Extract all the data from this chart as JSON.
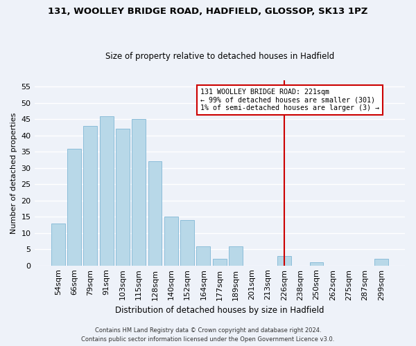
{
  "title": "131, WOOLLEY BRIDGE ROAD, HADFIELD, GLOSSOP, SK13 1PZ",
  "subtitle": "Size of property relative to detached houses in Hadfield",
  "xlabel": "Distribution of detached houses by size in Hadfield",
  "ylabel": "Number of detached properties",
  "bar_labels": [
    "54sqm",
    "66sqm",
    "79sqm",
    "91sqm",
    "103sqm",
    "115sqm",
    "128sqm",
    "140sqm",
    "152sqm",
    "164sqm",
    "177sqm",
    "189sqm",
    "201sqm",
    "213sqm",
    "226sqm",
    "238sqm",
    "250sqm",
    "262sqm",
    "275sqm",
    "287sqm",
    "299sqm"
  ],
  "bar_values": [
    13,
    36,
    43,
    46,
    42,
    45,
    32,
    15,
    14,
    6,
    2,
    6,
    0,
    0,
    3,
    0,
    1,
    0,
    0,
    0,
    2
  ],
  "bar_color": "#b8d8e8",
  "bar_edge_color": "#8bbdd9",
  "background_color": "#eef2f9",
  "grid_color": "#ffffff",
  "vline_x_index": 14,
  "vline_color": "#cc0000",
  "annotation_text": "131 WOOLLEY BRIDGE ROAD: 221sqm\n← 99% of detached houses are smaller (301)\n1% of semi-detached houses are larger (3) →",
  "annotation_box_facecolor": "#ffffff",
  "annotation_box_edgecolor": "#cc0000",
  "ylim": [
    0,
    57
  ],
  "yticks": [
    0,
    5,
    10,
    15,
    20,
    25,
    30,
    35,
    40,
    45,
    50,
    55
  ],
  "footer_line1": "Contains HM Land Registry data © Crown copyright and database right 2024.",
  "footer_line2": "Contains public sector information licensed under the Open Government Licence v3.0."
}
